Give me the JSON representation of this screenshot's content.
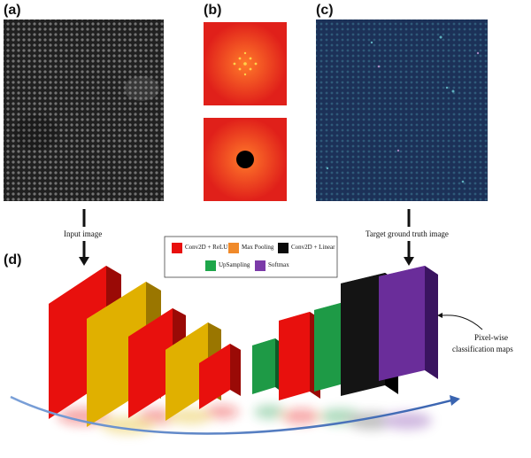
{
  "panels": {
    "a": "(a)",
    "b": "(b)",
    "c": "(c)",
    "d": "(d)"
  },
  "captions": {
    "input": "Input image",
    "target": "Target ground truth image",
    "output_line1": "Pixel-wise",
    "output_line2": "classification maps"
  },
  "legend": [
    {
      "label": "Conv2D + ReLU",
      "color": "#e8100d"
    },
    {
      "label": "Max Pooling",
      "color": "#f08a2a"
    },
    {
      "label": "Conv2D + Linear",
      "color": "#0a0a0a"
    },
    {
      "label": "UpSampling",
      "color": "#1ea64a"
    },
    {
      "label": "Softmax",
      "color": "#7b3aa8"
    }
  ],
  "colors": {
    "relu": "#e8100d",
    "pool": "#e0b000",
    "linear": "#141414",
    "upsample": "#1e9a46",
    "softmax": "#6a2d9a",
    "arrow": "#4a78c0",
    "fft_bg": "#e8281a",
    "truth_bg": "#1e3560"
  },
  "icons": [
    "down-arrow-icon",
    "curved-arrow-icon"
  ]
}
